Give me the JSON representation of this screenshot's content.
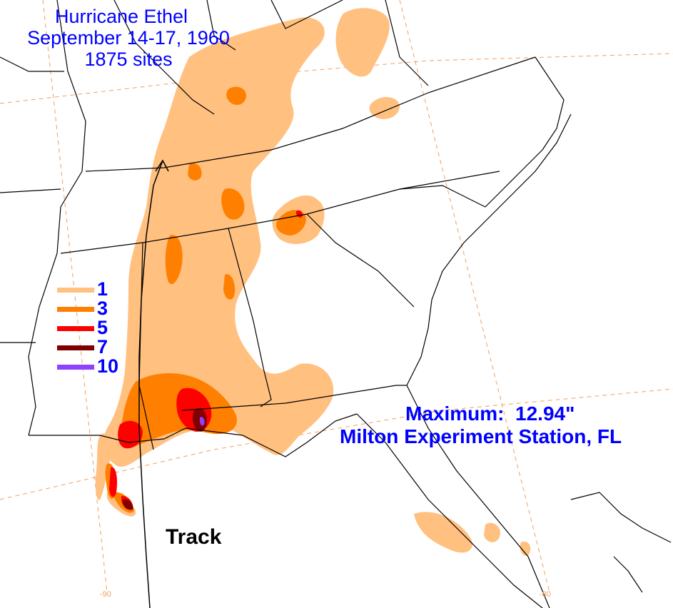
{
  "title": {
    "line1": "Hurricane Ethel",
    "line2": "September 14-17, 1960",
    "line3": "1875 sites"
  },
  "legend": {
    "items": [
      {
        "label": "1",
        "color": "#ffc080"
      },
      {
        "label": "3",
        "color": "#ff8000"
      },
      {
        "label": "5",
        "color": "#ff0000"
      },
      {
        "label": "7",
        "color": "#800000"
      },
      {
        "label": "10",
        "color": "#9040ff"
      }
    ]
  },
  "maximum": {
    "line1": "Maximum:  12.94\"",
    "line2": "Milton Experiment Station, FL"
  },
  "track": {
    "label": "Track"
  },
  "longitude": {
    "west": "-90",
    "east": "-80"
  },
  "colors": {
    "title_text": "#0000ff",
    "border": "#000000",
    "graticule": "#f0a060",
    "rain_1": "#ffc080",
    "rain_3": "#ff8000",
    "rain_5": "#ff0000",
    "rain_7": "#800000",
    "rain_10": "#9040ff"
  }
}
